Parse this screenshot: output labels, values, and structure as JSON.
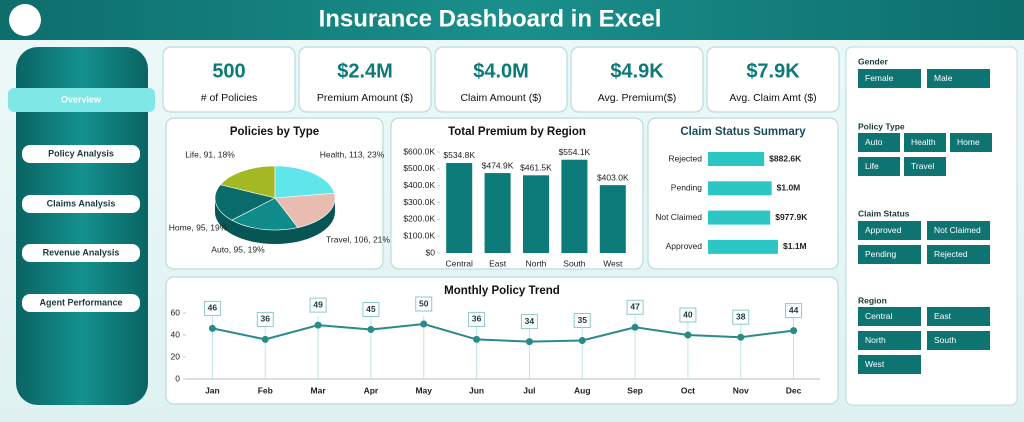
{
  "header": {
    "title": "Insurance Dashboard in Excel"
  },
  "nav": [
    "Overview",
    "Policy Analysis",
    "Claims Analysis",
    "Revenue Analysis",
    "Agent Performance"
  ],
  "kpis": [
    {
      "value": "500",
      "label": "# of Policies"
    },
    {
      "value": "$2.4M",
      "label": "Premium Amount ($)"
    },
    {
      "value": "$4.0M",
      "label": "Claim Amount ($)"
    },
    {
      "value": "$4.9K",
      "label": "Avg. Premium($)"
    },
    {
      "value": "$7.9K",
      "label": "Avg. Claim Amt ($)"
    }
  ],
  "chart_data": [
    {
      "type": "pie",
      "title": "Policies by Type",
      "categories": [
        "Life",
        "Health",
        "Travel",
        "Auto",
        "Home"
      ],
      "values": [
        91,
        113,
        106,
        95,
        95
      ],
      "value_labels": [
        "Life, 91, 18%",
        "Health, 113, 23%",
        "Travel, 106, 21%",
        "Auto, 95, 19%",
        "Home, 95, 19%"
      ],
      "colors": [
        "#a4b824",
        "#5fe6ea",
        "#e9bcb2",
        "#0f8c8a",
        "#0a6b6b"
      ]
    },
    {
      "type": "bar",
      "title": "Total Premium by Region",
      "categories": [
        "Central",
        "East",
        "North",
        "South",
        "West"
      ],
      "values": [
        534800,
        474900,
        461500,
        554100,
        403000
      ],
      "value_labels": [
        "$534.8K",
        "$474.9K",
        "$461.5K",
        "$554.1K",
        "$403.0K"
      ],
      "color": "#0b7a78",
      "ylim": [
        0,
        600000
      ],
      "yticks": [
        {
          "value": 0,
          "label": "$0"
        },
        {
          "value": 100000,
          "label": "$100.0K"
        },
        {
          "value": 200000,
          "label": "$200.0K"
        },
        {
          "value": 300000,
          "label": "$300.0K"
        },
        {
          "value": 400000,
          "label": "$400.0K"
        },
        {
          "value": 500000,
          "label": "$500.0K"
        },
        {
          "value": 600000,
          "label": "$600.0K"
        }
      ]
    },
    {
      "type": "hbar",
      "title": "Claim Status Summary",
      "categories": [
        "Rejected",
        "Pending",
        "Not Claimed",
        "Approved"
      ],
      "values": [
        882600,
        1000000,
        977900,
        1100000
      ],
      "value_labels": [
        "$882.6K",
        "$1.0M",
        "$977.9K",
        "$1.1M"
      ],
      "color": "#2cc6c4"
    },
    {
      "type": "line",
      "title": "Monthly Policy Trend",
      "categories": [
        "Jan",
        "Feb",
        "Mar",
        "Apr",
        "May",
        "Jun",
        "Jul",
        "Aug",
        "Sep",
        "Oct",
        "Nov",
        "Dec"
      ],
      "values": [
        46,
        36,
        49,
        45,
        50,
        36,
        34,
        35,
        47,
        40,
        38,
        44
      ],
      "color": "#2a8a8a",
      "ylim": [
        0,
        60
      ],
      "yticks": [
        0,
        20,
        40,
        60
      ]
    }
  ],
  "slicers": [
    {
      "title": "Gender",
      "items": [
        "Female",
        "Male"
      ]
    },
    {
      "title": "Policy Type",
      "items": [
        "Auto",
        "Health",
        "Home",
        "Life",
        "Travel"
      ]
    },
    {
      "title": "Claim Status",
      "items": [
        "Approved",
        "Not Claimed",
        "Pending",
        "Rejected"
      ]
    },
    {
      "title": "Region",
      "items": [
        "Central",
        "East",
        "North",
        "South",
        "West"
      ]
    }
  ]
}
